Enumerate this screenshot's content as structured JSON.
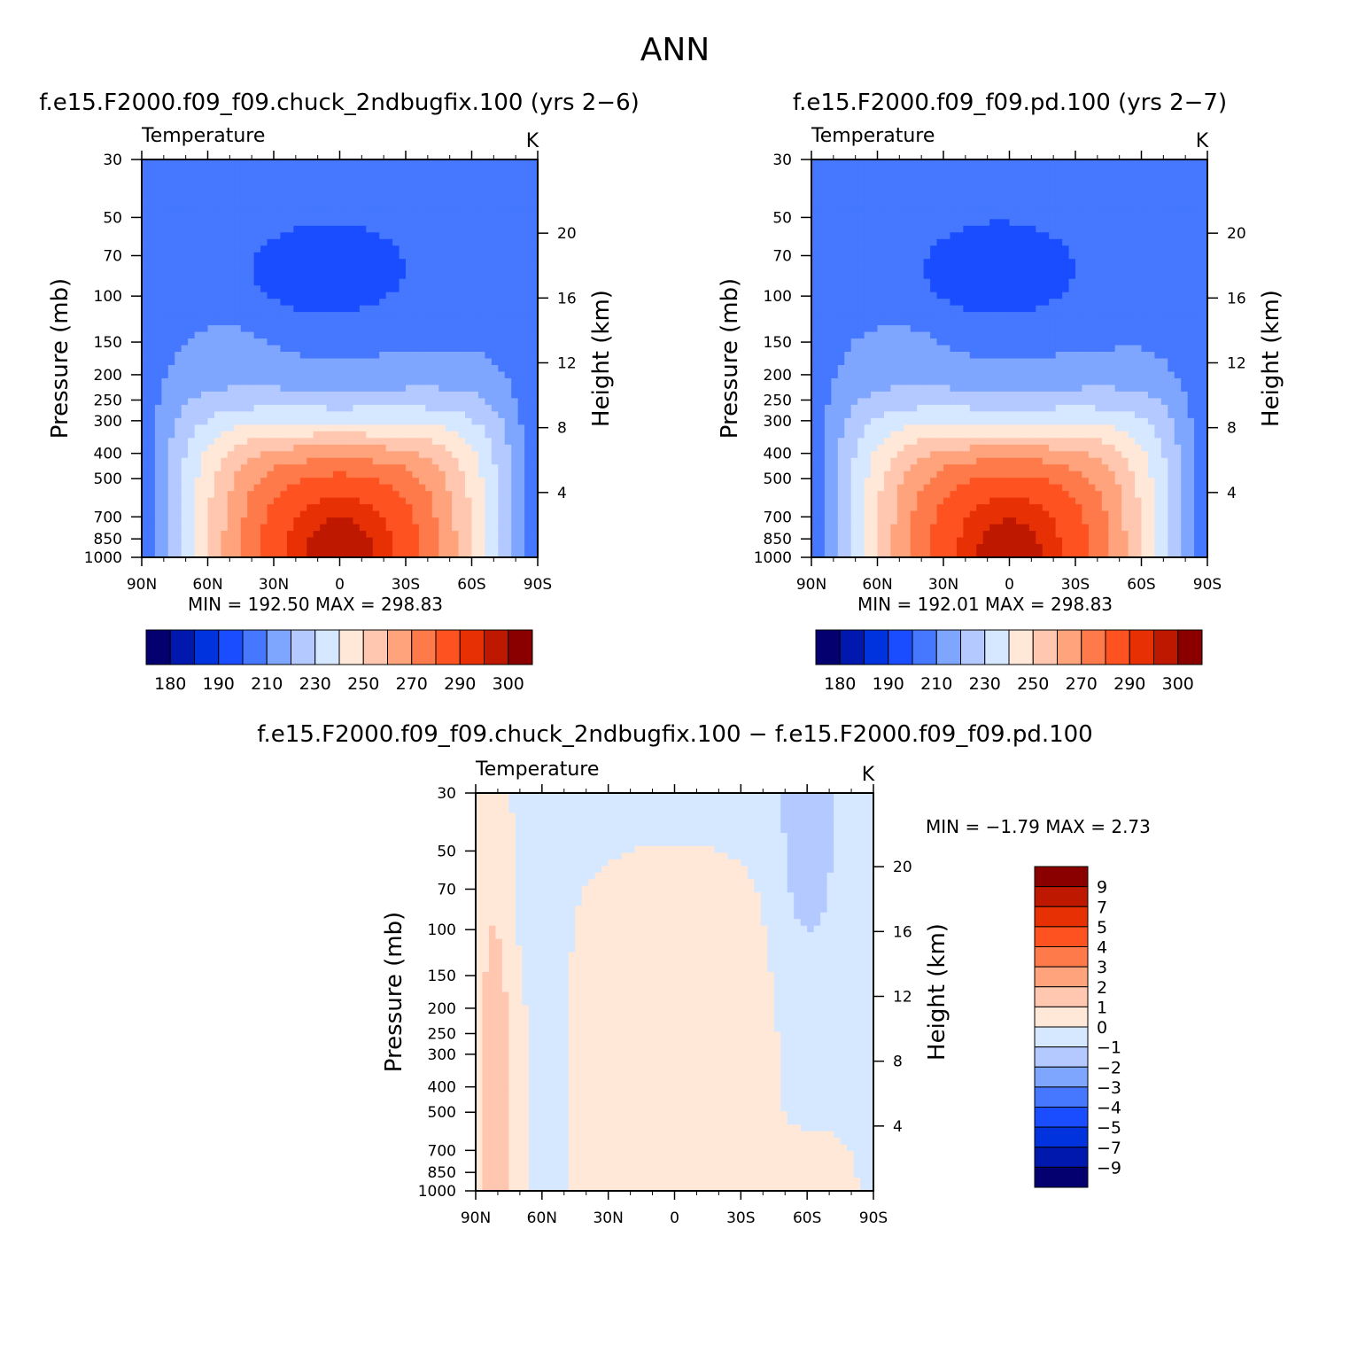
{
  "figure": {
    "title": "ANN"
  },
  "chart_data": [
    {
      "type": "heatmap",
      "title": "f.e15.F2000.f09_f09.chuck_2ndbugfix.100 (yrs 2-6)",
      "variable_label": "Temperature",
      "unit_label": "K",
      "ylabel": "Pressure (mb)",
      "y2label": "Height (km)",
      "xlim": [
        90,
        -90
      ],
      "ylim": [
        30,
        1000
      ],
      "y_scale": "log",
      "x_ticks": [
        90,
        60,
        30,
        0,
        -30,
        -60,
        -90
      ],
      "x_tick_labels": [
        "90N",
        "60N",
        "30N",
        "0",
        "30S",
        "60S",
        "90S"
      ],
      "y_ticks": [
        30,
        50,
        70,
        100,
        150,
        200,
        250,
        300,
        400,
        500,
        700,
        850,
        1000
      ],
      "y_tick_labels": [
        "30",
        "50",
        "70",
        "100",
        "150",
        "200",
        "250",
        "300",
        "400",
        "500",
        "700",
        "850",
        "1000"
      ],
      "y2_ticks_km": [
        4,
        8,
        12,
        16,
        20
      ],
      "y2_tick_labels": [
        "4",
        "8",
        "12",
        "16",
        "20"
      ],
      "stats": {
        "min_label": "MIN",
        "min": "192.50",
        "max_label": "MAX",
        "max": "298.83"
      },
      "levels": [
        180,
        185,
        190,
        200,
        210,
        220,
        230,
        240,
        250,
        260,
        270,
        280,
        290,
        295,
        300
      ],
      "colorbar_labels": [
        "180",
        "190",
        "210",
        "230",
        "250",
        "270",
        "290",
        "300"
      ],
      "colorbar_orientation": "horizontal",
      "grid": false
    },
    {
      "type": "heatmap",
      "title": "f.e15.F2000.f09_f09.pd.100 (yrs 2-7)",
      "variable_label": "Temperature",
      "unit_label": "K",
      "ylabel": "Pressure (mb)",
      "y2label": "Height (km)",
      "xlim": [
        90,
        -90
      ],
      "ylim": [
        30,
        1000
      ],
      "y_scale": "log",
      "x_ticks": [
        90,
        60,
        30,
        0,
        -30,
        -60,
        -90
      ],
      "x_tick_labels": [
        "90N",
        "60N",
        "30N",
        "0",
        "30S",
        "60S",
        "90S"
      ],
      "y_ticks": [
        30,
        50,
        70,
        100,
        150,
        200,
        250,
        300,
        400,
        500,
        700,
        850,
        1000
      ],
      "y_tick_labels": [
        "30",
        "50",
        "70",
        "100",
        "150",
        "200",
        "250",
        "300",
        "400",
        "500",
        "700",
        "850",
        "1000"
      ],
      "y2_ticks_km": [
        4,
        8,
        12,
        16,
        20
      ],
      "y2_tick_labels": [
        "4",
        "8",
        "12",
        "16",
        "20"
      ],
      "stats": {
        "min_label": "MIN",
        "min": "192.01",
        "max_label": "MAX",
        "max": "298.83"
      },
      "levels": [
        180,
        185,
        190,
        200,
        210,
        220,
        230,
        240,
        250,
        260,
        270,
        280,
        290,
        295,
        300
      ],
      "colorbar_labels": [
        "180",
        "190",
        "210",
        "230",
        "250",
        "270",
        "290",
        "300"
      ],
      "colorbar_orientation": "horizontal",
      "grid": false
    },
    {
      "type": "heatmap",
      "title": "f.e15.F2000.f09_f09.chuck_2ndbugfix.100 - f.e15.F2000.f09_f09.pd.100",
      "variable_label": "Temperature",
      "unit_label": "K",
      "ylabel": "Pressure (mb)",
      "y2label": "Height (km)",
      "xlim": [
        90,
        -90
      ],
      "ylim": [
        30,
        1000
      ],
      "y_scale": "log",
      "x_ticks": [
        90,
        60,
        30,
        0,
        -30,
        -60,
        -90
      ],
      "x_tick_labels": [
        "90N",
        "60N",
        "30N",
        "0",
        "30S",
        "60S",
        "90S"
      ],
      "y_ticks": [
        30,
        50,
        70,
        100,
        150,
        200,
        250,
        300,
        400,
        500,
        700,
        850,
        1000
      ],
      "y_tick_labels": [
        "30",
        "50",
        "70",
        "100",
        "150",
        "200",
        "250",
        "300",
        "400",
        "500",
        "700",
        "850",
        "1000"
      ],
      "y2_ticks_km": [
        4,
        8,
        12,
        16,
        20
      ],
      "y2_tick_labels": [
        "4",
        "8",
        "12",
        "16",
        "20"
      ],
      "stats": {
        "min_label": "MIN =",
        "min": "-1.79",
        "max_label": "MAX =",
        "max": "2.73"
      },
      "levels": [
        -9,
        -7,
        -5,
        -4,
        -3,
        -2,
        -1,
        0,
        1,
        2,
        3,
        4,
        5,
        7,
        9
      ],
      "colorbar_labels": [
        "9",
        "7",
        "5",
        "4",
        "3",
        "2",
        "1",
        "0",
        "-1",
        "-2",
        "-3",
        "-4",
        "-5",
        "-7",
        "-9"
      ],
      "colorbar_orientation": "vertical",
      "grid": false
    }
  ],
  "colormap": [
    "#04006f",
    "#0018ad",
    "#0033dd",
    "#1a4dff",
    "#4577ff",
    "#7fa6ff",
    "#b3c9ff",
    "#d6e8ff",
    "#ffe8d8",
    "#ffc7b0",
    "#ffa37d",
    "#ff7a4b",
    "#ff5221",
    "#e83005",
    "#bf1800",
    "#8a0000"
  ]
}
